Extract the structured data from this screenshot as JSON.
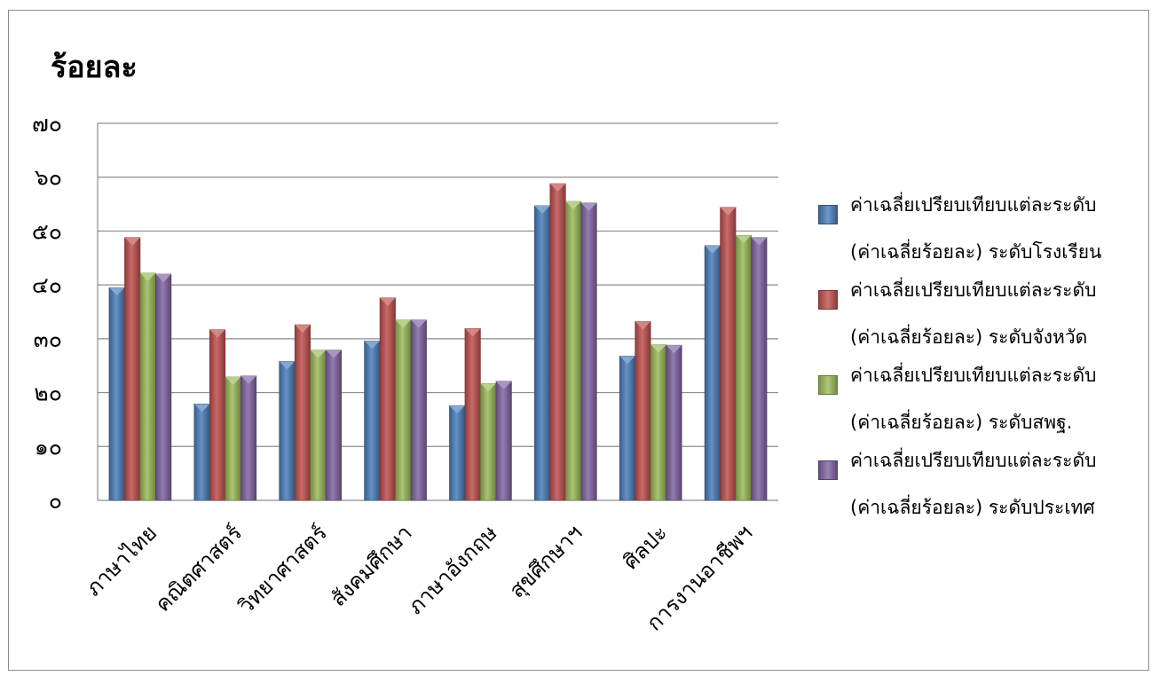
{
  "chart_data": {
    "type": "bar",
    "title": "ร้อยละ",
    "categories": [
      "ภาษาไทย",
      "คณิตศาสตร์",
      "วิทยาศาสตร์",
      "สังคมศึกษา",
      "ภาษาอังกฤษ",
      "สุขศึกษาฯ",
      "ศิลปะ",
      "การงานอาชีพฯ"
    ],
    "ylim": [
      0,
      70
    ],
    "y_ticks": [
      {
        "value": 0,
        "label": "๐"
      },
      {
        "value": 10,
        "label": "๑๐"
      },
      {
        "value": 20,
        "label": "๒๐"
      },
      {
        "value": 30,
        "label": "๓๐"
      },
      {
        "value": 40,
        "label": "๔๐"
      },
      {
        "value": 50,
        "label": "๕๐"
      },
      {
        "value": 60,
        "label": "๖๐"
      },
      {
        "value": 70,
        "label": "๗๐"
      }
    ],
    "grid": true,
    "legend_position": "right",
    "series": [
      {
        "name_line1": "ค่าเฉลี่ยเปรียบเทียบแต่ละระดับ",
        "name_line2": "(ค่าเฉลี่ยร้อยละ) ระดับโรงเรียน",
        "color": "#4a7ebb",
        "values": [
          39.5,
          17.9,
          25.8,
          29.6,
          17.6,
          54.7,
          26.8,
          47.3
        ]
      },
      {
        "name_line1": "ค่าเฉลี่ยเปรียบเทียบแต่ละระดับ",
        "name_line2": "(ค่าเฉลี่ยร้อยละ) ระดับจังหวัด",
        "color": "#c0504d",
        "values": [
          48.8,
          31.7,
          32.6,
          37.6,
          31.9,
          58.8,
          33.2,
          54.4
        ]
      },
      {
        "name_line1": "ค่าเฉลี่ยเปรียบเทียบแต่ละระดับ",
        "name_line2": "(ค่าเฉลี่ยร้อยละ) ระดับสพฐ.",
        "color": "#9bbb59",
        "values": [
          42.2,
          22.9,
          27.9,
          33.5,
          21.7,
          55.5,
          28.9,
          49.2
        ]
      },
      {
        "name_line1": "ค่าเฉลี่ยเปรียบเทียบแต่ละระดับ",
        "name_line2": "(ค่าเฉลี่ยร้อยละ) ระดับประเทศ",
        "color": "#8064a2",
        "values": [
          42.0,
          23.1,
          27.9,
          33.5,
          22.1,
          55.2,
          28.8,
          48.8
        ]
      }
    ]
  }
}
